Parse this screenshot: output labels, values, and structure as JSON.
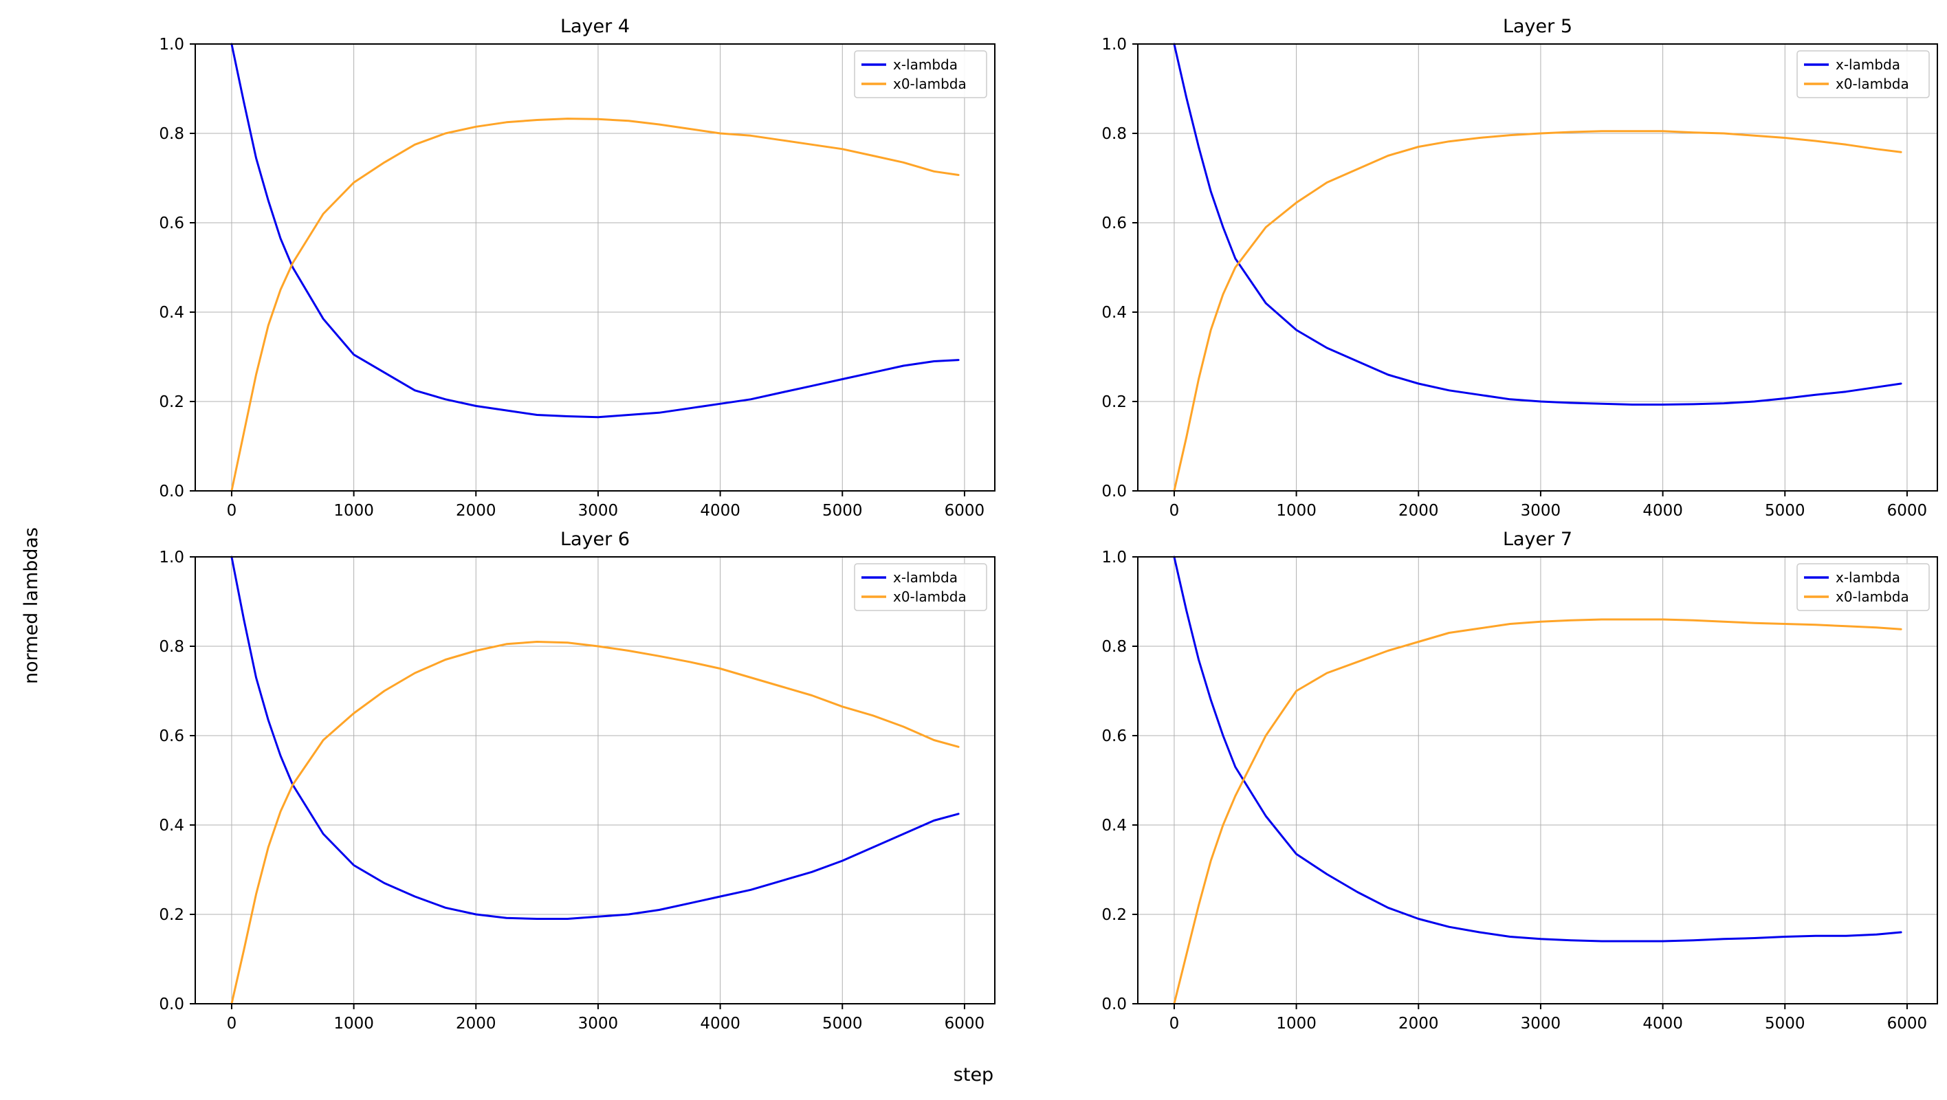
{
  "figure": {
    "background": "#ffffff"
  },
  "chart_data": {
    "type": "line",
    "layout": "2x2",
    "xlabel": "step",
    "ylabel": "normed lambdas",
    "xlim": [
      -298,
      6248
    ],
    "ylim": [
      0,
      1
    ],
    "xticks": [
      0,
      1000,
      2000,
      3000,
      4000,
      5000,
      6000
    ],
    "xtick_labels": [
      "0",
      "1000",
      "2000",
      "3000",
      "4000",
      "5000",
      "6000"
    ],
    "yticks": [
      0,
      0.2,
      0.4,
      0.6,
      0.8,
      1.0
    ],
    "ytick_labels": [
      "0.0",
      "0.2",
      "0.4",
      "0.6",
      "0.8",
      "1.0"
    ],
    "grid": true,
    "grid_color": "#b0b0b0",
    "frame_color": "#000000",
    "legend_position": "upper right",
    "x": [
      0,
      100,
      200,
      300,
      400,
      500,
      750,
      1000,
      1250,
      1500,
      1750,
      2000,
      2250,
      2500,
      2750,
      3000,
      3250,
      3500,
      3750,
      4000,
      4250,
      4500,
      4750,
      5000,
      5250,
      5500,
      5750,
      5950
    ],
    "charts": [
      {
        "title": "Layer 4",
        "series": [
          {
            "name": "x-lambda",
            "color": "#0000ee",
            "values": [
              1.0,
              0.87,
              0.745,
              0.65,
              0.565,
              0.5,
              0.385,
              0.305,
              0.265,
              0.225,
              0.205,
              0.19,
              0.18,
              0.17,
              0.167,
              0.165,
              0.17,
              0.175,
              0.185,
              0.195,
              0.205,
              0.22,
              0.235,
              0.25,
              0.265,
              0.28,
              0.29,
              0.293
            ]
          },
          {
            "name": "x0-lambda",
            "color": "#ffa427",
            "values": [
              0.0,
              0.13,
              0.26,
              0.37,
              0.45,
              0.51,
              0.62,
              0.69,
              0.735,
              0.775,
              0.8,
              0.815,
              0.825,
              0.83,
              0.833,
              0.832,
              0.828,
              0.82,
              0.81,
              0.8,
              0.795,
              0.785,
              0.775,
              0.765,
              0.75,
              0.735,
              0.715,
              0.707
            ]
          }
        ]
      },
      {
        "title": "Layer 5",
        "series": [
          {
            "name": "x-lambda",
            "color": "#0000ee",
            "values": [
              1.0,
              0.88,
              0.77,
              0.67,
              0.59,
              0.52,
              0.42,
              0.36,
              0.32,
              0.29,
              0.26,
              0.24,
              0.225,
              0.215,
              0.205,
              0.2,
              0.197,
              0.195,
              0.193,
              0.193,
              0.194,
              0.196,
              0.2,
              0.207,
              0.215,
              0.222,
              0.232,
              0.24
            ]
          },
          {
            "name": "x0-lambda",
            "color": "#ffa427",
            "values": [
              0.0,
              0.12,
              0.25,
              0.36,
              0.44,
              0.5,
              0.59,
              0.645,
              0.69,
              0.72,
              0.75,
              0.77,
              0.782,
              0.79,
              0.796,
              0.8,
              0.803,
              0.805,
              0.805,
              0.805,
              0.802,
              0.8,
              0.795,
              0.79,
              0.783,
              0.775,
              0.765,
              0.758
            ]
          }
        ]
      },
      {
        "title": "Layer 6",
        "series": [
          {
            "name": "x-lambda",
            "color": "#0000ee",
            "values": [
              1.0,
              0.86,
              0.73,
              0.635,
              0.555,
              0.49,
              0.38,
              0.31,
              0.27,
              0.24,
              0.215,
              0.2,
              0.192,
              0.19,
              0.19,
              0.195,
              0.2,
              0.21,
              0.225,
              0.24,
              0.255,
              0.275,
              0.295,
              0.32,
              0.35,
              0.38,
              0.41,
              0.425
            ]
          },
          {
            "name": "x0-lambda",
            "color": "#ffa427",
            "values": [
              0.0,
              0.12,
              0.245,
              0.35,
              0.43,
              0.49,
              0.59,
              0.65,
              0.7,
              0.74,
              0.77,
              0.79,
              0.805,
              0.81,
              0.808,
              0.8,
              0.79,
              0.778,
              0.765,
              0.75,
              0.73,
              0.71,
              0.69,
              0.665,
              0.645,
              0.62,
              0.59,
              0.575
            ]
          }
        ]
      },
      {
        "title": "Layer 7",
        "series": [
          {
            "name": "x-lambda",
            "color": "#0000ee",
            "values": [
              1.0,
              0.88,
              0.77,
              0.68,
              0.6,
              0.53,
              0.42,
              0.335,
              0.29,
              0.25,
              0.215,
              0.19,
              0.172,
              0.16,
              0.15,
              0.145,
              0.142,
              0.14,
              0.14,
              0.14,
              0.142,
              0.145,
              0.147,
              0.15,
              0.152,
              0.152,
              0.155,
              0.16
            ]
          },
          {
            "name": "x0-lambda",
            "color": "#ffa427",
            "values": [
              0.0,
              0.11,
              0.22,
              0.32,
              0.4,
              0.465,
              0.6,
              0.7,
              0.74,
              0.765,
              0.79,
              0.81,
              0.83,
              0.84,
              0.85,
              0.855,
              0.858,
              0.86,
              0.86,
              0.86,
              0.858,
              0.855,
              0.852,
              0.85,
              0.848,
              0.845,
              0.842,
              0.838
            ]
          }
        ]
      }
    ]
  }
}
